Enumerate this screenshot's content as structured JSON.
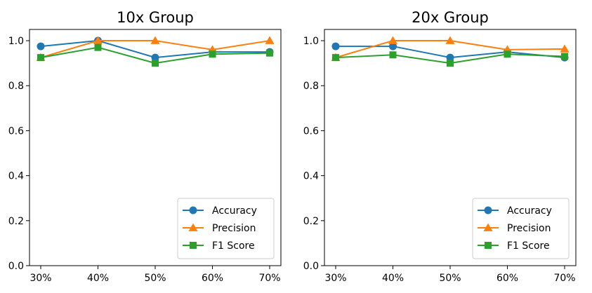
{
  "chart_data": [
    {
      "type": "line",
      "title": "10x Group",
      "categories": [
        "30%",
        "40%",
        "50%",
        "60%",
        "70%"
      ],
      "ylim": [
        0,
        1.05
      ],
      "yticks": [
        "0.0",
        "0.2",
        "0.4",
        "0.6",
        "0.8",
        "1.0"
      ],
      "grid": false,
      "legend_position": "lower-right",
      "series": [
        {
          "name": "Accuracy",
          "color": "#1f77b4",
          "marker": "circle",
          "values": [
            0.975,
            1.0,
            0.925,
            0.95,
            0.95
          ]
        },
        {
          "name": "Precision",
          "color": "#ff7f0e",
          "marker": "triangle",
          "values": [
            0.925,
            1.0,
            1.0,
            0.96,
            1.0
          ]
        },
        {
          "name": "F1 Score",
          "color": "#2ca02c",
          "marker": "square",
          "values": [
            0.925,
            0.97,
            0.9,
            0.94,
            0.945
          ]
        }
      ]
    },
    {
      "type": "line",
      "title": "20x Group",
      "categories": [
        "30%",
        "40%",
        "50%",
        "60%",
        "70%"
      ],
      "ylim": [
        0,
        1.05
      ],
      "yticks": [
        "0.0",
        "0.2",
        "0.4",
        "0.6",
        "0.8",
        "1.0"
      ],
      "grid": false,
      "legend_position": "lower-right",
      "series": [
        {
          "name": "Accuracy",
          "color": "#1f77b4",
          "marker": "circle",
          "values": [
            0.975,
            0.975,
            0.925,
            0.95,
            0.925
          ]
        },
        {
          "name": "Precision",
          "color": "#ff7f0e",
          "marker": "triangle",
          "values": [
            0.925,
            1.0,
            1.0,
            0.96,
            0.963
          ]
        },
        {
          "name": "F1 Score",
          "color": "#2ca02c",
          "marker": "square",
          "values": [
            0.925,
            0.937,
            0.9,
            0.94,
            0.93
          ]
        }
      ]
    }
  ]
}
